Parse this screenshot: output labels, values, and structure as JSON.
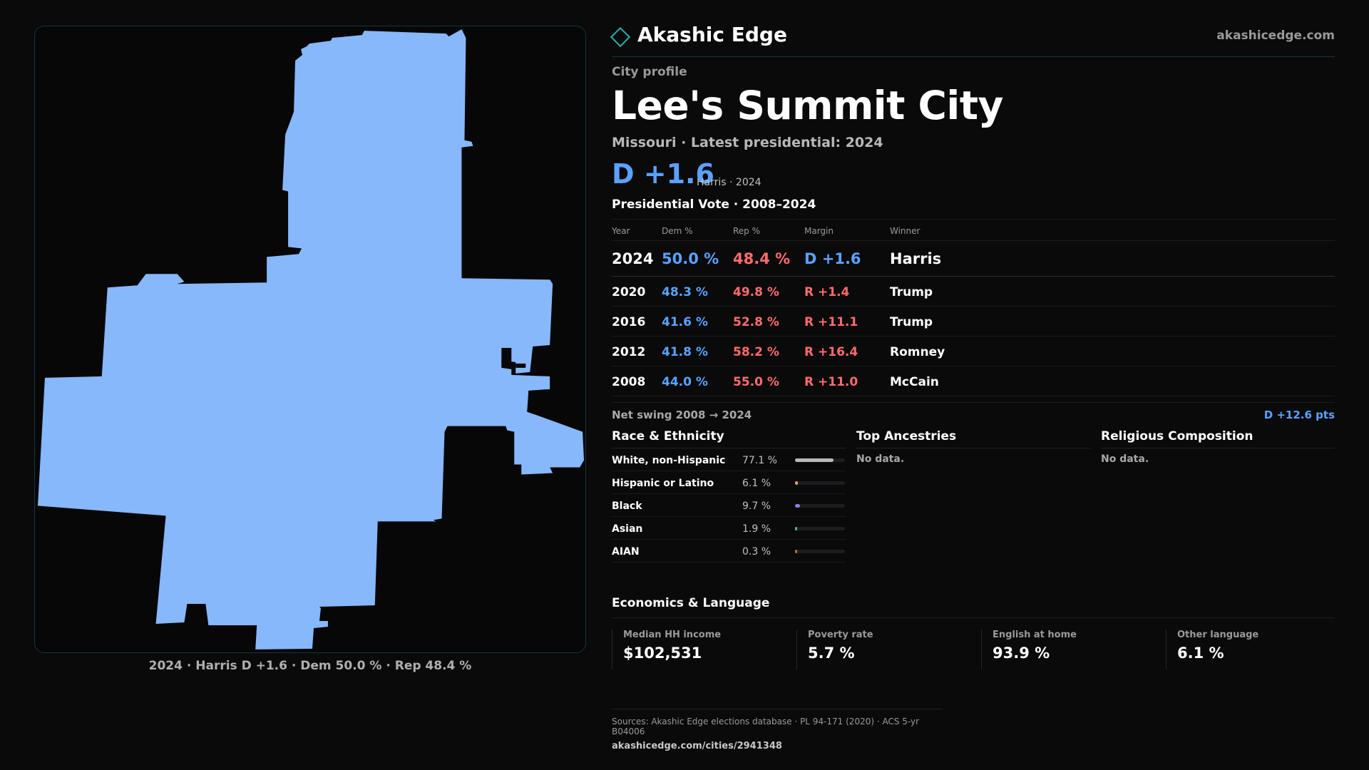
{
  "colors": {
    "background": "#0a0a0b",
    "accent_teal": "#20b5b0",
    "dem_blue": "#5aa2ff",
    "rep_red": "#ff6b6b",
    "map_fill": "#86b8fb"
  },
  "map": {
    "region_name": "Lee's Summit City",
    "caption": "2024 · Harris D +1.6 · Dem 50.0 % · Rep 48.4 %"
  },
  "brand": {
    "logo_icon": "diamond-outline-icon",
    "name": "Akashic Edge",
    "url": "akashicedge.com"
  },
  "profile": {
    "kicker": "City profile",
    "title": "Lee's Summit City",
    "subtitle": "Missouri · Latest presidential: 2024",
    "margin": "D +1.6",
    "margin_note": "Harris · 2024"
  },
  "vote_table": {
    "title": "Presidential Vote · 2008–2024",
    "headers": [
      "Year",
      "Dem %",
      "Rep %",
      "Margin",
      "Winner"
    ],
    "rows": [
      {
        "year": "2024",
        "dem": "50.0 %",
        "rep": "48.4 %",
        "margin": "D +1.6",
        "winner": "Harris"
      },
      {
        "year": "2020",
        "dem": "48.3 %",
        "rep": "49.8 %",
        "margin": "R +1.4",
        "winner": "Trump"
      },
      {
        "year": "2016",
        "dem": "41.6 %",
        "rep": "52.8 %",
        "margin": "R +11.1",
        "winner": "Trump"
      },
      {
        "year": "2012",
        "dem": "41.8 %",
        "rep": "58.2 %",
        "margin": "R +16.4",
        "winner": "Romney"
      },
      {
        "year": "2008",
        "dem": "44.0 %",
        "rep": "55.0 %",
        "margin": "R +11.0",
        "winner": "McCain"
      }
    ]
  },
  "swing": {
    "label": "Net swing 2008 → 2024",
    "value": "D +12.6 pts"
  },
  "race": {
    "title": "Race & Ethnicity",
    "rows": [
      {
        "label": "White, non-Hispanic",
        "pct": "77.1 %",
        "value": 77.1,
        "color": "#b8b8b8"
      },
      {
        "label": "Hispanic or Latino",
        "pct": "6.1 %",
        "value": 6.1,
        "color": "#e8a33a"
      },
      {
        "label": "Black",
        "pct": "9.7 %",
        "value": 9.7,
        "color": "#8f7ae8"
      },
      {
        "label": "Asian",
        "pct": "1.9 %",
        "value": 1.9,
        "color": "#3ac0a0"
      },
      {
        "label": "AIAN",
        "pct": "0.3 %",
        "value": 0.3,
        "color": "#c06a3a"
      }
    ]
  },
  "ancestries": {
    "title": "Top Ancestries",
    "empty": "No data."
  },
  "religion": {
    "title": "Religious Composition",
    "empty": "No data."
  },
  "economics": {
    "title": "Economics & Language",
    "stats": [
      {
        "label": "Median HH income",
        "value": "$102,531"
      },
      {
        "label": "Poverty rate",
        "value": "5.7 %"
      },
      {
        "label": "English at home",
        "value": "93.9 %"
      },
      {
        "label": "Other language",
        "value": "6.1 %"
      }
    ]
  },
  "sources": {
    "line1": "Sources: Akashic Edge elections database · PL 94-171 (2020) · ACS 5-yr B04006",
    "line2": "akashicedge.com/cities/2941348"
  }
}
